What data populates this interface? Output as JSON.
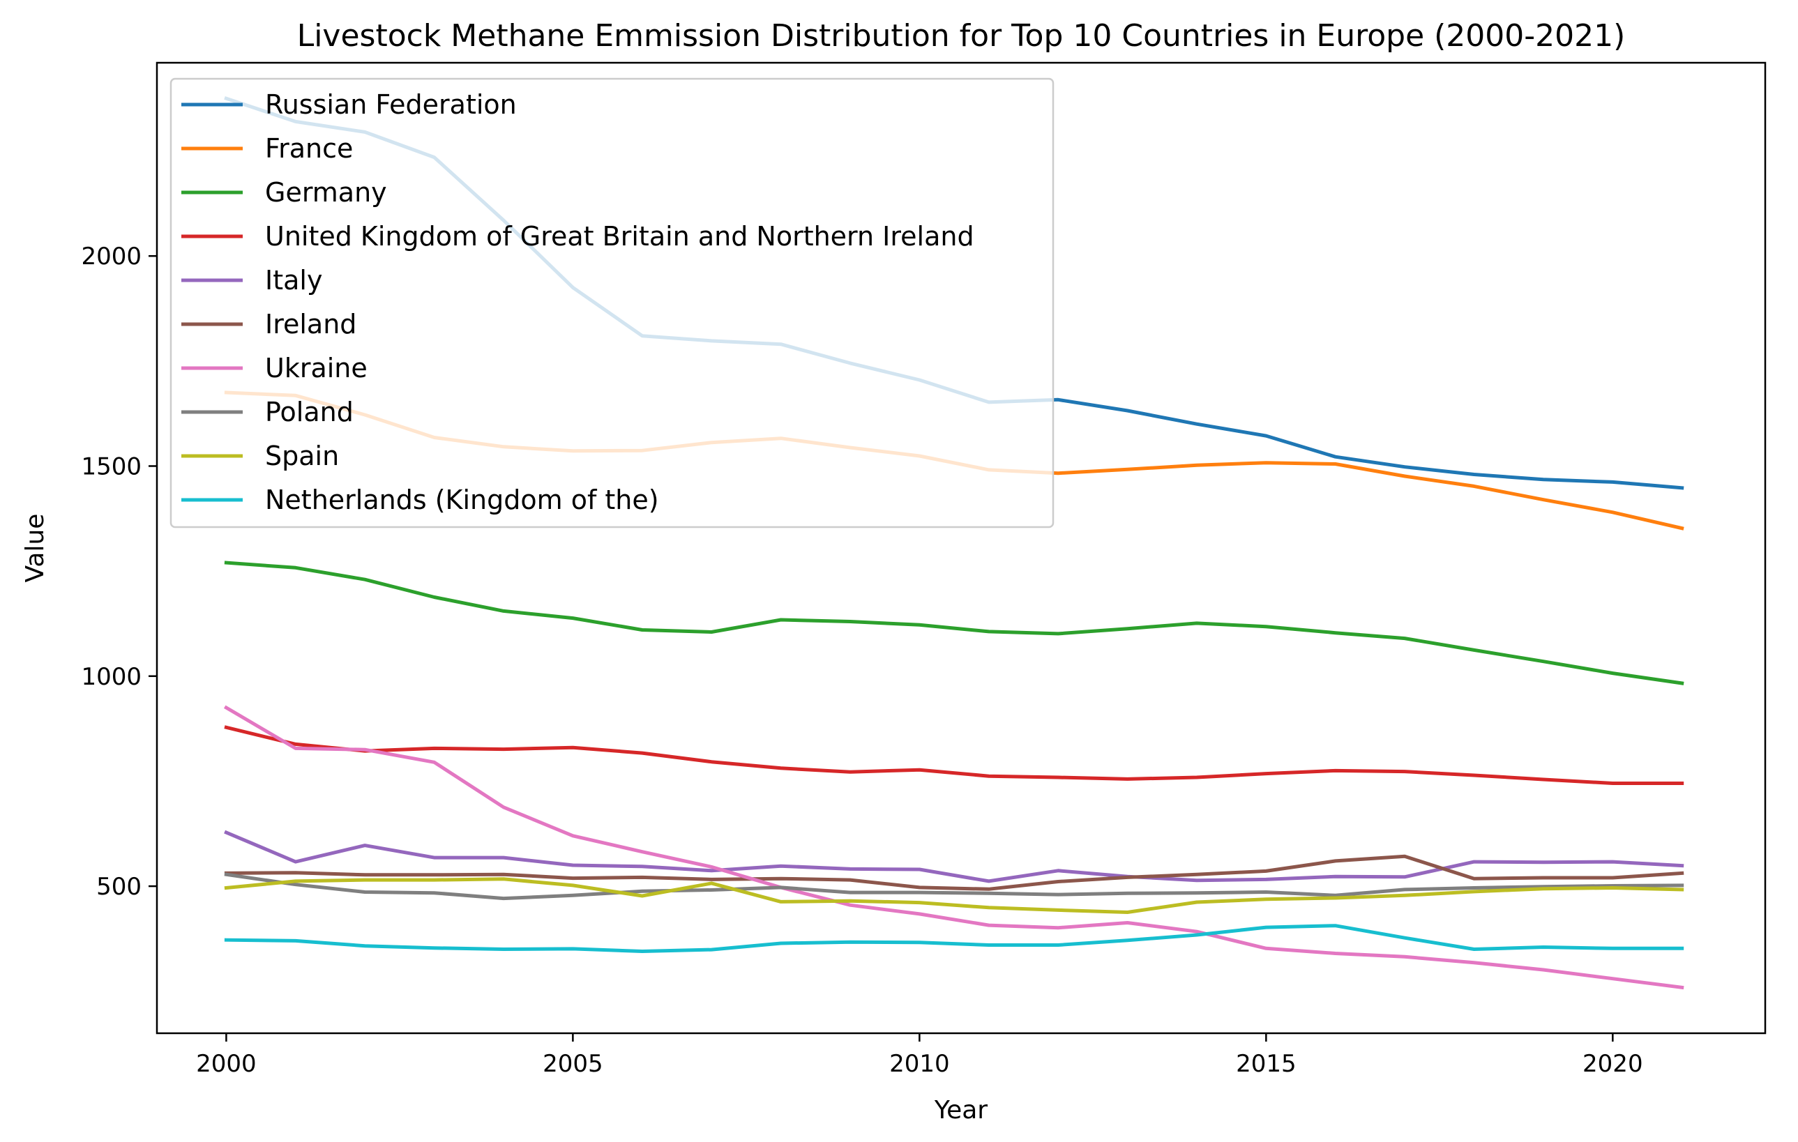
{
  "chart_data": {
    "type": "line",
    "title": "Livestock Methane Emmission Distribution for Top 10 Countries in Europe (2000-2021)",
    "xlabel": "Year",
    "ylabel": "Value",
    "xlim": [
      1999,
      2022.2
    ],
    "ylim": [
      150,
      2460
    ],
    "xticks": [
      2000,
      2005,
      2010,
      2015,
      2020
    ],
    "yticks": [
      500,
      1000,
      1500,
      2000
    ],
    "grid": false,
    "legend_position": "top-left",
    "x": [
      2000,
      2001,
      2002,
      2003,
      2004,
      2005,
      2006,
      2007,
      2008,
      2009,
      2010,
      2011,
      2012,
      2013,
      2014,
      2015,
      2016,
      2017,
      2018,
      2019,
      2020,
      2021
    ],
    "series": [
      {
        "name": "Russian Federation",
        "color": "#1f77b4",
        "values": [
          2375,
          2320,
          2295,
          2235,
          2085,
          1925,
          1810,
          1798,
          1790,
          1745,
          1705,
          1652,
          1658,
          1632,
          1600,
          1572,
          1522,
          1498,
          1480,
          1468,
          1462,
          1448
        ]
      },
      {
        "name": "France",
        "color": "#ff7f0e",
        "values": [
          1675,
          1668,
          1622,
          1568,
          1546,
          1536,
          1537,
          1556,
          1566,
          1544,
          1524,
          1491,
          1483,
          1492,
          1502,
          1508,
          1505,
          1476,
          1452,
          1420,
          1390,
          1352
        ]
      },
      {
        "name": "Germany",
        "color": "#2ca02c",
        "values": [
          1270,
          1258,
          1230,
          1188,
          1155,
          1138,
          1110,
          1105,
          1134,
          1130,
          1122,
          1106,
          1101,
          1113,
          1126,
          1118,
          1103,
          1090,
          1062,
          1035,
          1007,
          983
        ]
      },
      {
        "name": "United Kingdom of Great Britain and Northern Ireland",
        "color": "#d62728",
        "values": [
          878,
          838,
          822,
          828,
          826,
          830,
          817,
          796,
          781,
          772,
          777,
          762,
          759,
          755,
          759,
          768,
          775,
          773,
          764,
          754,
          745,
          745
        ]
      },
      {
        "name": "Italy",
        "color": "#9467bd",
        "values": [
          628,
          558,
          597,
          568,
          568,
          550,
          547,
          537,
          548,
          541,
          540,
          512,
          537,
          523,
          514,
          516,
          523,
          522,
          558,
          557,
          558,
          549
        ]
      },
      {
        "name": "Ireland",
        "color": "#8c564b",
        "values": [
          531,
          532,
          527,
          527,
          528,
          519,
          521,
          516,
          518,
          515,
          497,
          493,
          511,
          521,
          528,
          536,
          560,
          571,
          518,
          520,
          520,
          531
        ]
      },
      {
        "name": "Ukraine",
        "color": "#e377c2",
        "values": [
          925,
          828,
          825,
          795,
          688,
          620,
          582,
          546,
          497,
          455,
          434,
          407,
          401,
          413,
          392,
          352,
          340,
          332,
          318,
          301,
          280,
          259
        ]
      },
      {
        "name": "Poland",
        "color": "#7f7f7f",
        "values": [
          528,
          504,
          486,
          484,
          471,
          478,
          488,
          491,
          497,
          485,
          485,
          483,
          480,
          483,
          484,
          486,
          478,
          492,
          496,
          499,
          501,
          502
        ]
      },
      {
        "name": "Spain",
        "color": "#bcbd22",
        "values": [
          496,
          512,
          515,
          515,
          517,
          502,
          477,
          507,
          463,
          465,
          461,
          449,
          443,
          438,
          462,
          469,
          472,
          478,
          487,
          494,
          496,
          492
        ]
      },
      {
        "name": "Netherlands (Kingdom of the)",
        "color": "#17becf",
        "values": [
          372,
          370,
          358,
          353,
          350,
          351,
          345,
          349,
          364,
          367,
          366,
          360,
          360,
          371,
          384,
          402,
          406,
          377,
          350,
          355,
          352,
          352
        ]
      }
    ]
  }
}
